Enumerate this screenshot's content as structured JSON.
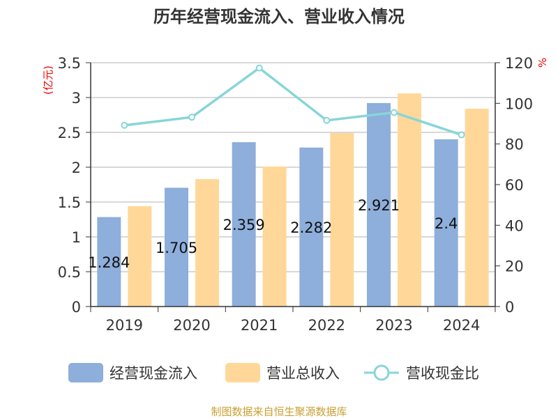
{
  "chart_data": {
    "type": "bar",
    "title": "历年经营现金流入、营业收入情况",
    "categories": [
      "2019",
      "2020",
      "2021",
      "2022",
      "2023",
      "2024"
    ],
    "series": [
      {
        "name": "经营现金流入",
        "type": "bar",
        "axis": "left",
        "color": "#8eaedb",
        "values": [
          1.284,
          1.705,
          2.359,
          2.282,
          2.921,
          2.4
        ],
        "labels": [
          "1.284",
          "1.705",
          "2.359",
          "2.282",
          "2.921",
          "2.4"
        ]
      },
      {
        "name": "营业总收入",
        "type": "bar",
        "axis": "left",
        "color": "#ffd899",
        "values": [
          1.44,
          1.83,
          2.01,
          2.49,
          3.06,
          2.84
        ]
      },
      {
        "name": "营收现金比",
        "type": "line",
        "axis": "right",
        "color": "#88d5d8",
        "values": [
          89.2,
          93.2,
          117.4,
          91.6,
          95.5,
          84.5
        ]
      }
    ],
    "ylabel": "(亿元)",
    "y2label": "%",
    "ylim": [
      0,
      3.5
    ],
    "yticks": [
      "0",
      "0.5",
      "1",
      "1.5",
      "2",
      "2.5",
      "3",
      "3.5"
    ],
    "y2lim": [
      0,
      120
    ],
    "y2ticks": [
      "0",
      "20",
      "40",
      "60",
      "80",
      "100",
      "120"
    ],
    "grid": true,
    "legend": "bottom"
  },
  "footer": "制图数据来自恒生聚源数据库"
}
